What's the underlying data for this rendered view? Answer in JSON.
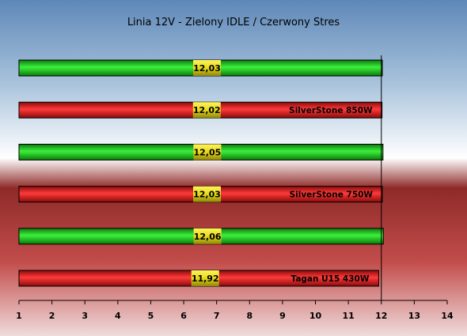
{
  "chart_data": {
    "type": "bar",
    "orientation": "horizontal",
    "title": "Linia 12V - Zielony IDLE / Czerwony Stres",
    "xlabel": "",
    "ylabel": "",
    "xlim": [
      1,
      14
    ],
    "ticks": [
      1,
      2,
      3,
      4,
      5,
      6,
      7,
      8,
      9,
      10,
      11,
      12,
      13,
      14
    ],
    "grid": false,
    "legend": "none",
    "bars": [
      {
        "value": 12.03,
        "value_label": "12,03",
        "label": "",
        "color": "#22cc22"
      },
      {
        "value": 12.02,
        "value_label": "12,02",
        "label": "SilverStone 850W",
        "color": "#ee2222"
      },
      {
        "value": 12.05,
        "value_label": "12,05",
        "label": "",
        "color": "#22cc22"
      },
      {
        "value": 12.03,
        "value_label": "12,03",
        "label": "SilverStone 750W",
        "color": "#ee2222"
      },
      {
        "value": 12.06,
        "value_label": "12,06",
        "label": "",
        "color": "#22cc22"
      },
      {
        "value": 11.92,
        "value_label": "11,92",
        "label": "Tagan U15 430W",
        "color": "#ee2222"
      }
    ],
    "colors": {
      "idle": "#22cc22",
      "stress": "#ee2222",
      "value_box": "#e8e020",
      "reference_line": "#000000"
    }
  }
}
